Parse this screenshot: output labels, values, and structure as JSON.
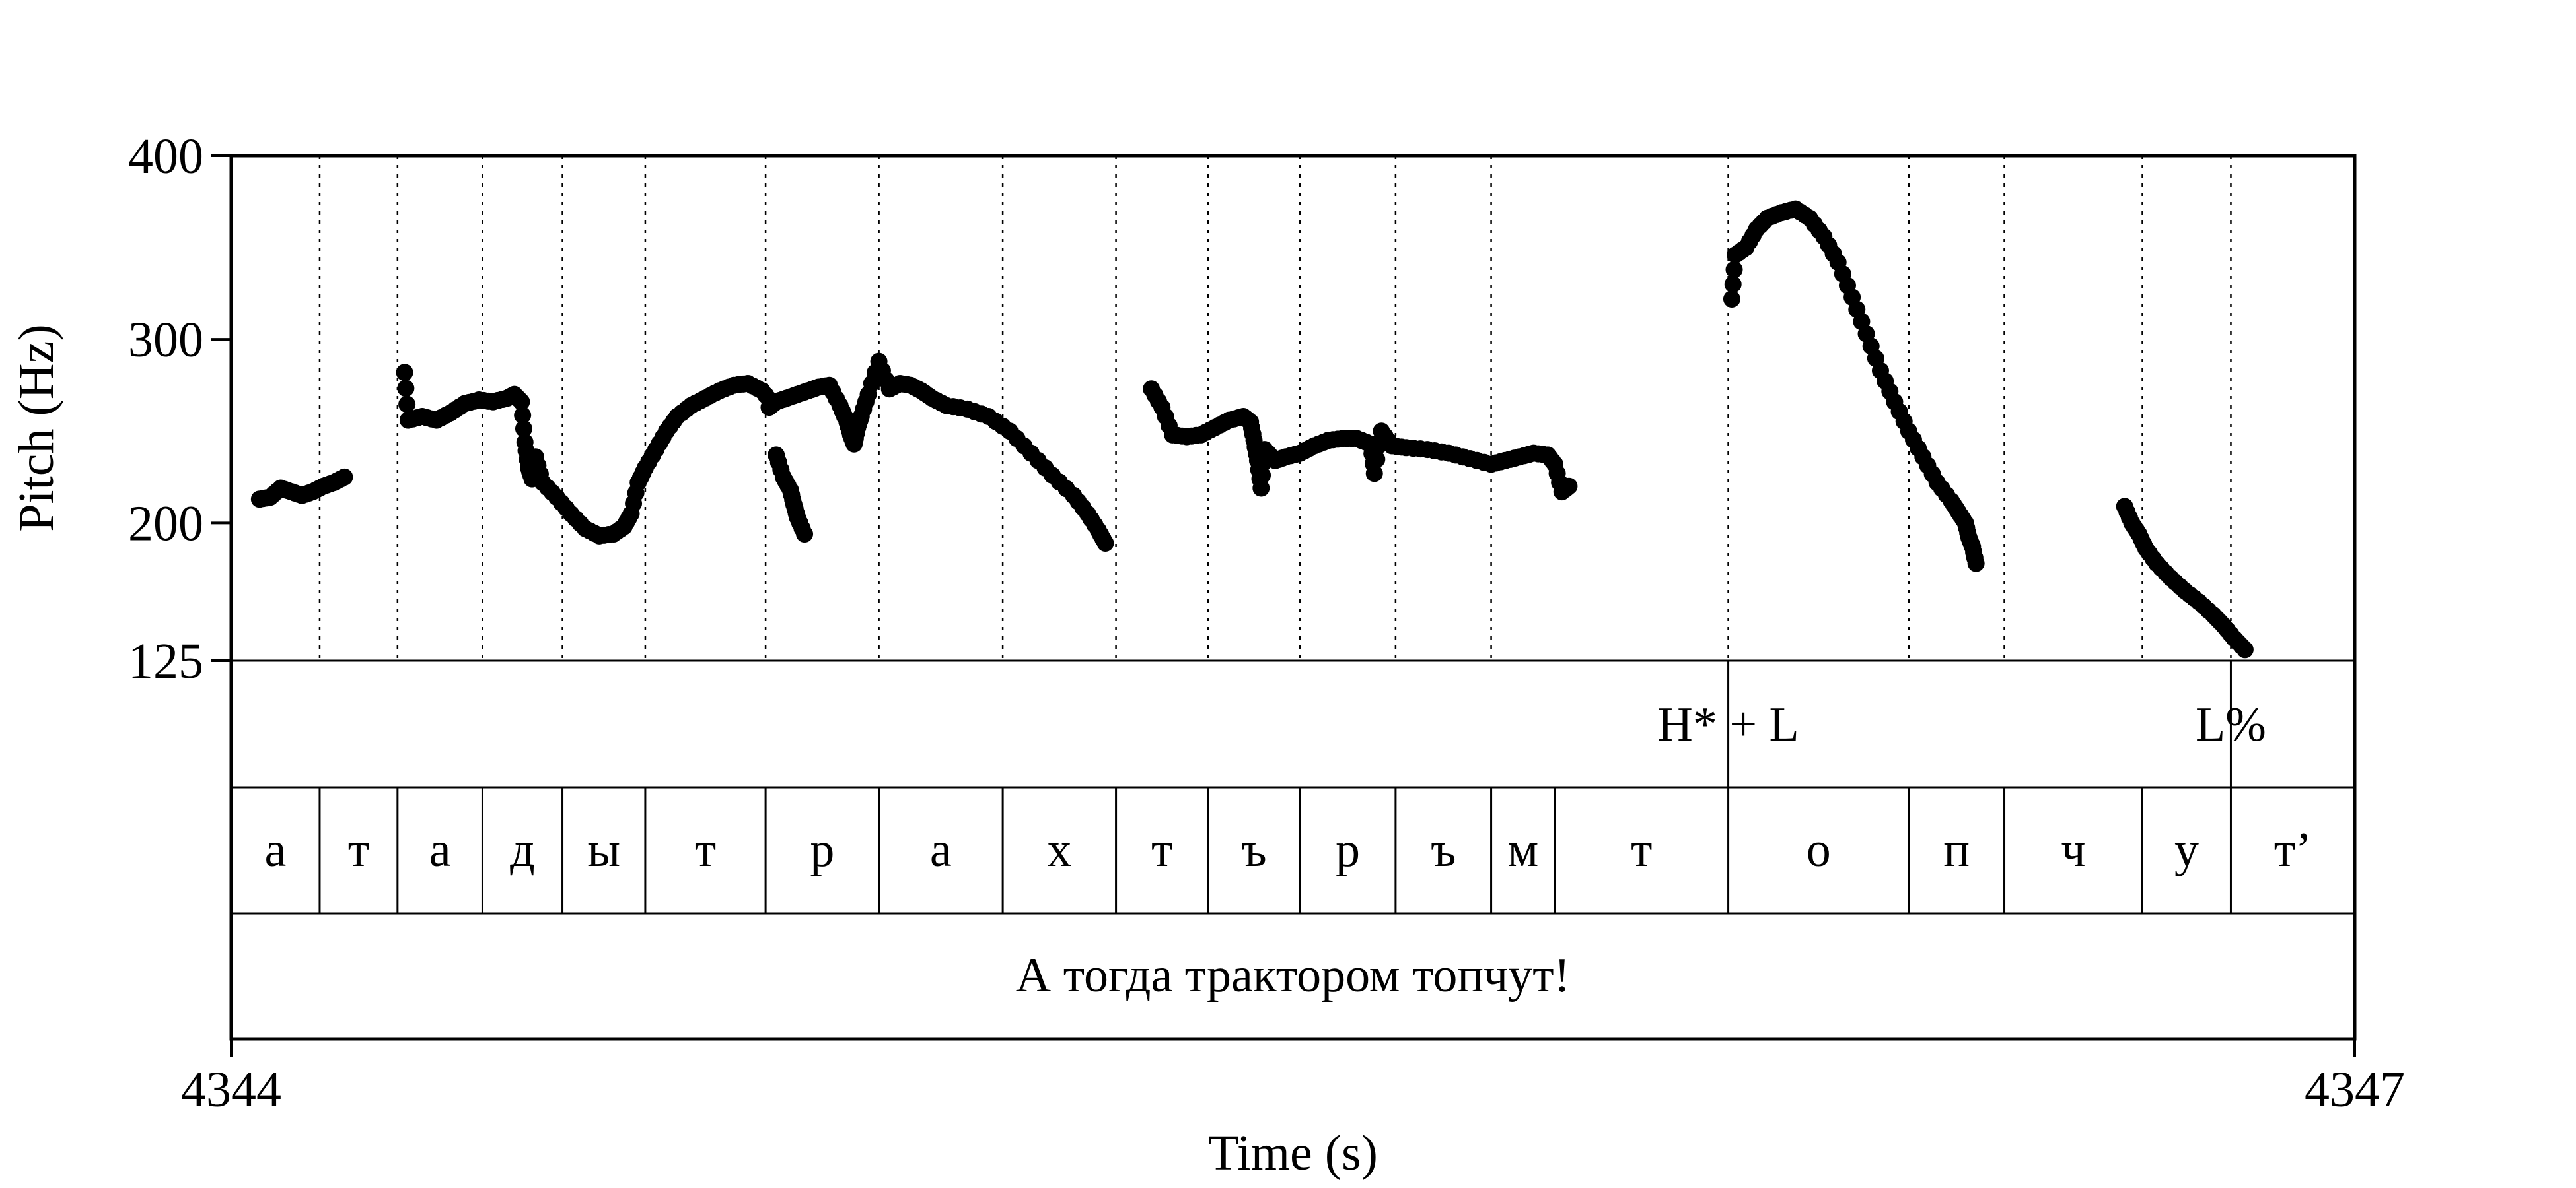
{
  "chart_data": {
    "type": "scatter",
    "title": "",
    "xlabel": "Time (s)",
    "ylabel": "Pitch (Hz)",
    "xlim": [
      4344,
      4347
    ],
    "ylim": [
      125,
      400
    ],
    "x_tick_labels": [
      "4344",
      "4347"
    ],
    "y_ticks": [
      125,
      200,
      300,
      400
    ],
    "y_tick_labels": [
      "125",
      "200",
      "300",
      "400"
    ],
    "marker_color": "#000000",
    "pitch_segments": [
      [
        [
          4344.04,
          213
        ],
        [
          4344.055,
          214
        ],
        [
          4344.07,
          219
        ],
        [
          4344.085,
          217
        ],
        [
          4344.1,
          215
        ],
        [
          4344.115,
          217
        ],
        [
          4344.13,
          220
        ],
        [
          4344.145,
          222
        ],
        [
          4344.16,
          225
        ]
      ],
      [
        [
          4344.245,
          282
        ],
        [
          4344.25,
          256
        ],
        [
          4344.27,
          258
        ],
        [
          4344.29,
          256
        ],
        [
          4344.31,
          260
        ],
        [
          4344.33,
          265
        ],
        [
          4344.35,
          267
        ],
        [
          4344.37,
          266
        ],
        [
          4344.39,
          268
        ],
        [
          4344.4,
          270
        ],
        [
          4344.41,
          266
        ],
        [
          4344.415,
          244
        ],
        [
          4344.42,
          230
        ],
        [
          4344.425,
          224
        ],
        [
          4344.43,
          236
        ],
        [
          4344.44,
          222
        ],
        [
          4344.46,
          214
        ],
        [
          4344.48,
          205
        ],
        [
          4344.5,
          197
        ],
        [
          4344.52,
          193
        ],
        [
          4344.54,
          194
        ],
        [
          4344.555,
          198
        ],
        [
          4344.565,
          205
        ],
        [
          4344.575,
          222
        ],
        [
          4344.585,
          230
        ],
        [
          4344.6,
          240
        ],
        [
          4344.615,
          250
        ],
        [
          4344.63,
          258
        ],
        [
          4344.65,
          264
        ],
        [
          4344.67,
          268
        ],
        [
          4344.69,
          272
        ],
        [
          4344.71,
          275
        ],
        [
          4344.73,
          276
        ],
        [
          4344.75,
          272
        ],
        [
          4344.765,
          265
        ]
      ],
      [
        [
          4344.77,
          237
        ],
        [
          4344.78,
          225
        ],
        [
          4344.79,
          218
        ],
        [
          4344.795,
          210
        ],
        [
          4344.8,
          203
        ],
        [
          4344.81,
          194
        ]
      ],
      [
        [
          4344.76,
          263
        ],
        [
          4344.77,
          266
        ],
        [
          4344.785,
          268
        ],
        [
          4344.8,
          270
        ],
        [
          4344.815,
          272
        ],
        [
          4344.83,
          274
        ],
        [
          4344.845,
          275
        ],
        [
          4344.86,
          264
        ],
        [
          4344.87,
          255
        ],
        [
          4344.875,
          248
        ],
        [
          4344.88,
          243
        ],
        [
          4344.885,
          252
        ],
        [
          4344.89,
          258
        ],
        [
          4344.9,
          270
        ],
        [
          4344.915,
          288
        ],
        [
          4344.93,
          273
        ],
        [
          4344.945,
          276
        ],
        [
          4344.96,
          275
        ],
        [
          4344.975,
          272
        ],
        [
          4344.99,
          268
        ],
        [
          4345.01,
          264
        ],
        [
          4345.04,
          262
        ],
        [
          4345.07,
          258
        ],
        [
          4345.1,
          250
        ],
        [
          4345.13,
          238
        ],
        [
          4345.16,
          226
        ],
        [
          4345.19,
          215
        ],
        [
          4345.21,
          205
        ],
        [
          4345.225,
          196
        ],
        [
          4345.235,
          189
        ]
      ]
    ],
    "pitch_segments_2": [
      [
        [
          4345.3,
          273
        ],
        [
          4345.315,
          263
        ],
        [
          4345.33,
          248
        ],
        [
          4345.35,
          247
        ],
        [
          4345.37,
          248
        ],
        [
          4345.39,
          252
        ],
        [
          4345.41,
          256
        ],
        [
          4345.43,
          258
        ],
        [
          4345.44,
          255
        ],
        [
          4345.445,
          245
        ],
        [
          4345.45,
          234
        ],
        [
          4345.455,
          219
        ],
        [
          4345.46,
          240
        ],
        [
          4345.475,
          234
        ],
        [
          4345.49,
          236
        ],
        [
          4345.51,
          238
        ],
        [
          4345.53,
          242
        ],
        [
          4345.55,
          245
        ],
        [
          4345.57,
          246
        ],
        [
          4345.59,
          246
        ],
        [
          4345.61,
          243
        ],
        [
          4345.615,
          227
        ],
        [
          4345.625,
          250
        ],
        [
          4345.64,
          242
        ],
        [
          4345.66,
          241
        ],
        [
          4345.69,
          240
        ],
        [
          4345.72,
          238
        ],
        [
          4345.75,
          235
        ],
        [
          4345.78,
          232
        ],
        [
          4345.8,
          234
        ],
        [
          4345.82,
          236
        ],
        [
          4345.84,
          238
        ],
        [
          4345.86,
          237
        ],
        [
          4345.87,
          232
        ],
        [
          4345.88,
          217
        ],
        [
          4345.89,
          220
        ]
      ],
      [
        [
          4346.12,
          322
        ],
        [
          4346.125,
          346
        ],
        [
          4346.14,
          350
        ],
        [
          4346.155,
          360
        ],
        [
          4346.17,
          366
        ],
        [
          4346.19,
          369
        ],
        [
          4346.21,
          371
        ],
        [
          4346.23,
          366
        ],
        [
          4346.25,
          356
        ],
        [
          4346.27,
          342
        ],
        [
          4346.29,
          323
        ],
        [
          4346.31,
          303
        ],
        [
          4346.33,
          283
        ],
        [
          4346.35,
          266
        ],
        [
          4346.37,
          250
        ],
        [
          4346.39,
          236
        ],
        [
          4346.41,
          222
        ],
        [
          4346.43,
          212
        ],
        [
          4346.44,
          206
        ],
        [
          4346.45,
          200
        ],
        [
          4346.455,
          192
        ],
        [
          4346.46,
          187
        ],
        [
          4346.465,
          178
        ]
      ],
      [
        [
          4346.675,
          209
        ],
        [
          4346.685,
          200
        ],
        [
          4346.695,
          194
        ],
        [
          4346.705,
          186
        ],
        [
          4346.72,
          178
        ],
        [
          4346.74,
          170
        ],
        [
          4346.76,
          163
        ],
        [
          4346.78,
          157
        ],
        [
          4346.8,
          150
        ],
        [
          4346.815,
          144
        ],
        [
          4346.83,
          137
        ],
        [
          4346.845,
          131
        ]
      ]
    ],
    "boundaries": [
      4344.125,
      4344.235,
      4344.355,
      4344.468,
      4344.585,
      4344.755,
      4344.915,
      4345.09,
      4345.25,
      4345.38,
      4345.51,
      4345.645,
      4345.78,
      4346.115,
      4346.37,
      4346.505,
      4346.7,
      4346.825
    ],
    "tones": [
      {
        "label": "H* + L",
        "t": 4346.115
      },
      {
        "label": "L%",
        "t": 4346.825
      }
    ],
    "phones": [
      {
        "label": "а",
        "t0": 4344.0,
        "t1": 4344.125
      },
      {
        "label": "т",
        "t0": 4344.125,
        "t1": 4344.235
      },
      {
        "label": "а",
        "t0": 4344.235,
        "t1": 4344.355
      },
      {
        "label": "д",
        "t0": 4344.355,
        "t1": 4344.468
      },
      {
        "label": "ы",
        "t0": 4344.468,
        "t1": 4344.585
      },
      {
        "label": "т",
        "t0": 4344.585,
        "t1": 4344.755
      },
      {
        "label": "р",
        "t0": 4344.755,
        "t1": 4344.915
      },
      {
        "label": "а",
        "t0": 4344.915,
        "t1": 4345.09
      },
      {
        "label": "х",
        "t0": 4345.09,
        "t1": 4345.25
      },
      {
        "label": "т",
        "t0": 4345.25,
        "t1": 4345.38
      },
      {
        "label": "ъ",
        "t0": 4345.38,
        "t1": 4345.51
      },
      {
        "label": "р",
        "t0": 4345.51,
        "t1": 4345.645
      },
      {
        "label": "ъ",
        "t0": 4345.645,
        "t1": 4345.78
      },
      {
        "label": "м",
        "t0": 4345.78,
        "t1": 4345.87
      },
      {
        "label": "т",
        "t0": 4345.87,
        "t1": 4346.115
      },
      {
        "label": "о",
        "t0": 4346.115,
        "t1": 4346.37
      },
      {
        "label": "п",
        "t0": 4346.37,
        "t1": 4346.505
      },
      {
        "label": "ч",
        "t0": 4346.505,
        "t1": 4346.7
      },
      {
        "label": "у",
        "t0": 4346.7,
        "t1": 4346.825
      },
      {
        "label": "т’",
        "t0": 4346.825,
        "t1": 4347.0
      }
    ],
    "sentence": "А тогда трактором топчут!"
  }
}
